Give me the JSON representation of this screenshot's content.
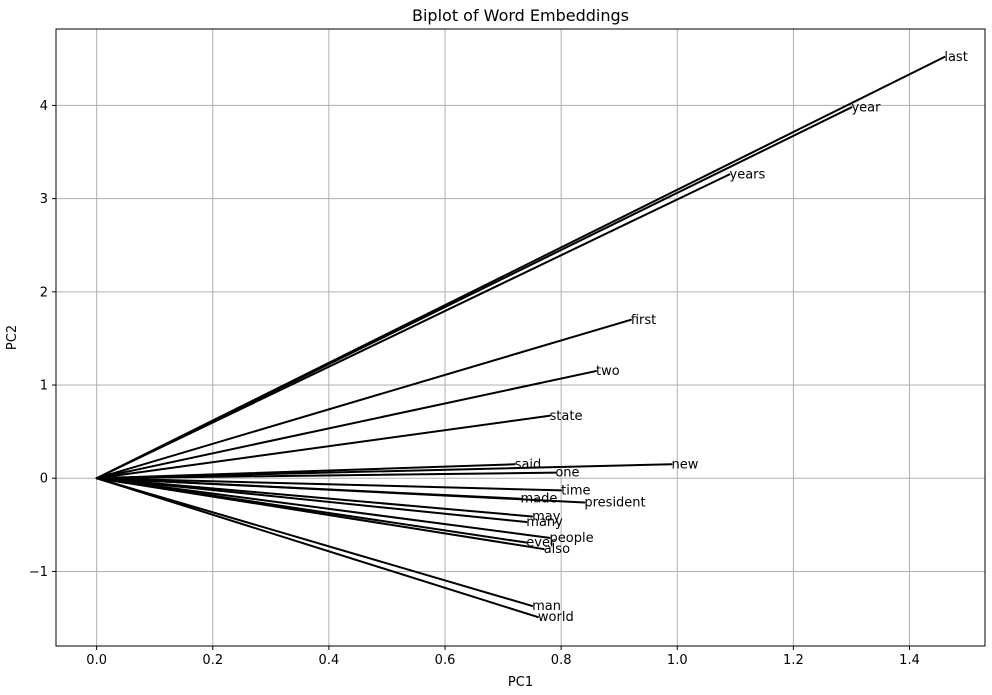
{
  "chart_data": {
    "type": "biplot",
    "title": "Biplot of Word Embeddings",
    "xlabel": "PC1",
    "ylabel": "PC2",
    "xlim": [
      -0.07,
      1.53
    ],
    "ylim": [
      -1.8,
      4.82
    ],
    "xticks": [
      0.0,
      0.2,
      0.4,
      0.6,
      0.8,
      1.0,
      1.2,
      1.4
    ],
    "xtick_labels": [
      "0.0",
      "0.2",
      "0.4",
      "0.6",
      "0.8",
      "1.0",
      "1.2",
      "1.4"
    ],
    "yticks": [
      -1,
      0,
      1,
      2,
      3,
      4
    ],
    "ytick_labels": [
      "−1",
      "0",
      "1",
      "2",
      "3",
      "4"
    ],
    "grid": true,
    "origin": [
      0,
      0
    ],
    "colors": {
      "vector": "#000000",
      "grid": "#b0b0b0"
    },
    "vectors": [
      {
        "word": "last",
        "x": 1.46,
        "y": 4.52
      },
      {
        "word": "year",
        "x": 1.3,
        "y": 3.98
      },
      {
        "word": "years",
        "x": 1.09,
        "y": 3.26
      },
      {
        "word": "first",
        "x": 0.92,
        "y": 1.7
      },
      {
        "word": "two",
        "x": 0.86,
        "y": 1.15
      },
      {
        "word": "state",
        "x": 0.78,
        "y": 0.67
      },
      {
        "word": "new",
        "x": 0.99,
        "y": 0.15
      },
      {
        "word": "said",
        "x": 0.72,
        "y": 0.15
      },
      {
        "word": "one",
        "x": 0.79,
        "y": 0.06
      },
      {
        "word": "time",
        "x": 0.8,
        "y": -0.13
      },
      {
        "word": "made",
        "x": 0.73,
        "y": -0.22
      },
      {
        "word": "president",
        "x": 0.84,
        "y": -0.26
      },
      {
        "word": "may",
        "x": 0.75,
        "y": -0.41
      },
      {
        "word": "many",
        "x": 0.74,
        "y": -0.47
      },
      {
        "word": "people",
        "x": 0.78,
        "y": -0.64
      },
      {
        "word": "ever",
        "x": 0.74,
        "y": -0.69
      },
      {
        "word": "also",
        "x": 0.77,
        "y": -0.76
      },
      {
        "word": "man",
        "x": 0.75,
        "y": -1.37
      },
      {
        "word": "world",
        "x": 0.76,
        "y": -1.49
      }
    ]
  }
}
